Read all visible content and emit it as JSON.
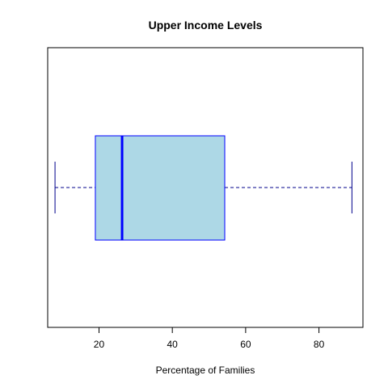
{
  "chart_data": {
    "type": "boxplot",
    "orientation": "horizontal",
    "title": "Upper Income Levels",
    "xlabel": "Percentage of Families",
    "ylabel": "",
    "xlim": [
      6,
      92
    ],
    "x_ticks": [
      20,
      40,
      60,
      80
    ],
    "grid": false,
    "box": {
      "whisker_low": 8,
      "q1": 19,
      "median": 26.3,
      "q3": 54.3,
      "whisker_high": 89
    },
    "colors": {
      "box_fill": "#add8e6",
      "box_border": "#0000ff",
      "median": "#0000ff",
      "whisker": "#00008b",
      "axis": "#000000"
    }
  }
}
